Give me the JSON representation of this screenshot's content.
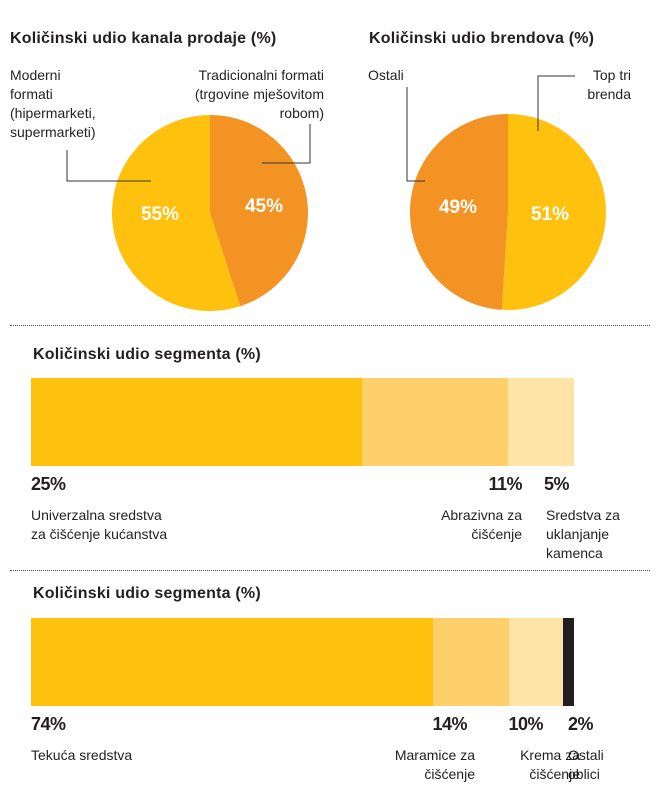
{
  "colors": {
    "orange": "#f29324",
    "yellow": "#fdc10e",
    "light_yellow": "#fdd06b",
    "pale_yellow": "#fee4a6",
    "black": "#231f20",
    "leader": "#333333"
  },
  "chart_data": [
    {
      "type": "pie",
      "title": "Količinski udio kanala prodaje (%)",
      "slices": [
        {
          "label": "Tradicionalni formati\n(trgovine mješovitom\nrobom)",
          "value": 45,
          "value_label": "45%",
          "color": "#f29324"
        },
        {
          "label": "Moderni\nformati\n(hipermarketi,\nsupermarketi)",
          "value": 55,
          "value_label": "55%",
          "color": "#fdc10e"
        }
      ]
    },
    {
      "type": "pie",
      "title": "Količinski udio brendova (%)",
      "slices": [
        {
          "label": "Top tri\nbrenda",
          "value": 51,
          "value_label": "51%",
          "color": "#fdc10e"
        },
        {
          "label": "Ostali",
          "value": 49,
          "value_label": "49%",
          "color": "#f29324"
        }
      ]
    },
    {
      "type": "bar",
      "stacked": true,
      "title": "Količinski udio segmenta (%)",
      "segments": [
        {
          "label": "Univerzalna sredstva\nza čišćenje kućanstva",
          "value": 25,
          "value_label": "25%",
          "color": "#fdc10e"
        },
        {
          "label": "Abrazivna za\nčišćenje",
          "value": 11,
          "value_label": "11%",
          "color": "#fdd06b"
        },
        {
          "label": "Sredstva za\nuklanjanje\nkamenca",
          "value": 5,
          "value_label": "5%",
          "color": "#fee4a6"
        }
      ]
    },
    {
      "type": "bar",
      "stacked": true,
      "title": "Količinski udio segmenta (%)",
      "segments": [
        {
          "label": "Tekuća sredstva",
          "value": 74,
          "value_label": "74%",
          "color": "#fdc10e"
        },
        {
          "label": "Maramice za\nčišćenje",
          "value": 14,
          "value_label": "14%",
          "color": "#fdd06b"
        },
        {
          "label": "Krema za\nčišćenje",
          "value": 10,
          "value_label": "10%",
          "color": "#fee4a6"
        },
        {
          "label": "Ostali\noblici",
          "value": 2,
          "value_label": "2%",
          "color": "#231f20"
        }
      ]
    }
  ]
}
